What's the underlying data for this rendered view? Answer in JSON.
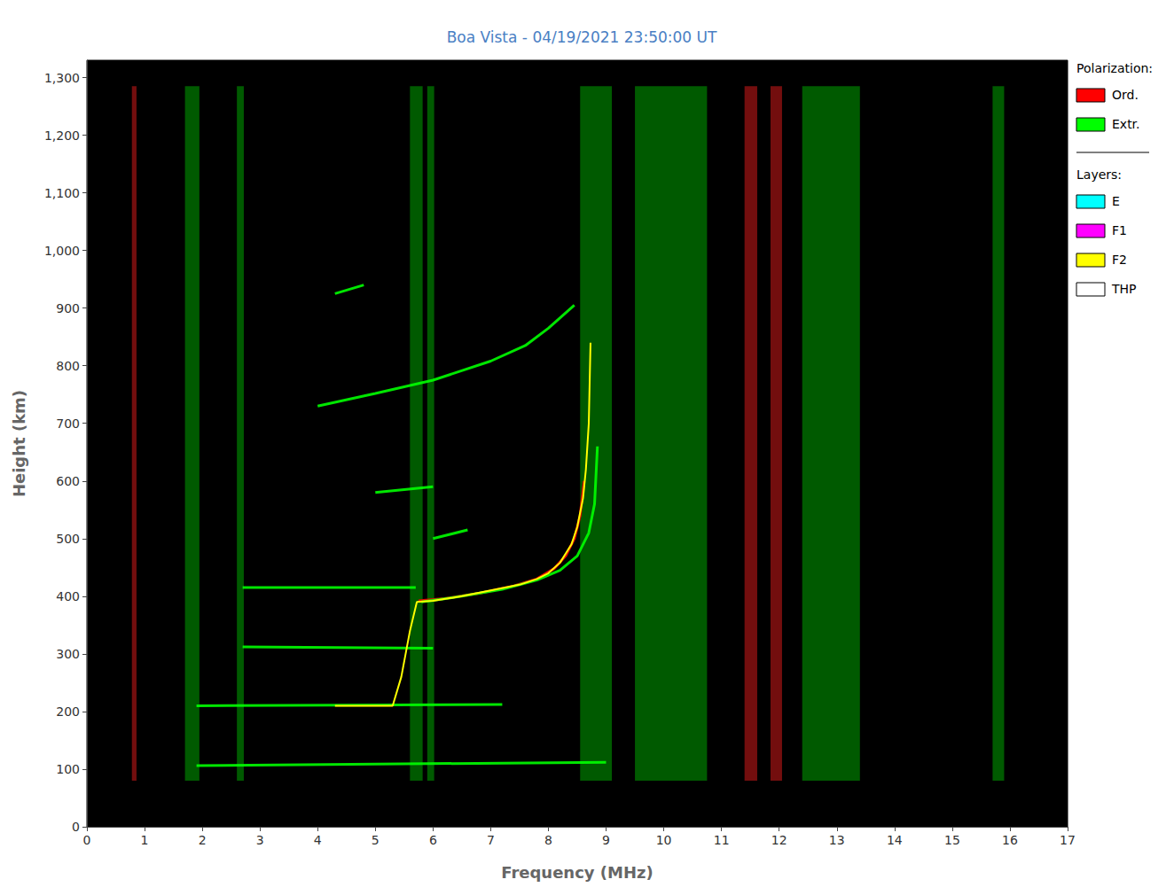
{
  "chart_data": {
    "type": "scatter",
    "title": "Boa Vista - 04/19/2021 23:50:00 UT",
    "x_label": "Frequency (MHz)",
    "y_label": "Height (km)",
    "xlim": [
      0,
      17
    ],
    "xticks": [
      0,
      1,
      2,
      3,
      4,
      5,
      6,
      7,
      8,
      9,
      10,
      11,
      12,
      13,
      14,
      15,
      16,
      17
    ],
    "ylim": [
      0,
      1330
    ],
    "yticks": [
      0,
      100,
      200,
      300,
      400,
      500,
      600,
      700,
      800,
      900,
      1000,
      1100,
      1200,
      1300
    ],
    "grid": false,
    "legend": "right",
    "interference": {
      "heights": [
        80,
        1285
      ],
      "bands": [
        {
          "from": 0.78,
          "to": 0.86,
          "color": "#ff2020"
        },
        {
          "from": 1.7,
          "to": 1.95,
          "color": "#00c800"
        },
        {
          "from": 2.6,
          "to": 2.72,
          "color": "#00c800"
        },
        {
          "from": 5.6,
          "to": 5.82,
          "color": "#00c800"
        },
        {
          "from": 5.9,
          "to": 6.02,
          "color": "#00c800"
        },
        {
          "from": 8.55,
          "to": 9.1,
          "color": "#00c800"
        },
        {
          "from": 9.5,
          "to": 10.75,
          "color": "#00c800"
        },
        {
          "from": 11.4,
          "to": 11.62,
          "color": "#ff2020"
        },
        {
          "from": 11.85,
          "to": 12.05,
          "color": "#ff2020"
        },
        {
          "from": 12.4,
          "to": 13.4,
          "color": "#00c800"
        },
        {
          "from": 15.7,
          "to": 15.9,
          "color": "#00c800"
        }
      ]
    },
    "legend_groups": [
      {
        "title": "Polarization:",
        "series": [
          {
            "name": "Ord.",
            "color": "#ff0000",
            "type": "line",
            "values": [
              [
                5.75,
                392
              ],
              [
                6.2,
                396
              ],
              [
                6.8,
                405
              ],
              [
                7.4,
                418
              ],
              [
                7.8,
                430
              ],
              [
                8.1,
                448
              ],
              [
                8.3,
                470
              ],
              [
                8.45,
                500
              ],
              [
                8.55,
                540
              ],
              [
                8.62,
                600
              ]
            ]
          },
          {
            "name": "Extr.",
            "color": "#00ff00",
            "type": "line",
            "values": [
              [
                5.8,
                390
              ],
              [
                6.5,
                400
              ],
              [
                7.2,
                412
              ],
              [
                7.8,
                428
              ],
              [
                8.2,
                445
              ],
              [
                8.5,
                470
              ],
              [
                8.7,
                510
              ],
              [
                8.8,
                560
              ],
              [
                8.82,
                600
              ],
              [
                8.85,
                660
              ],
              null,
              [
                1.9,
                106
              ],
              [
                9.0,
                112
              ],
              null,
              [
                1.9,
                210
              ],
              [
                7.2,
                212
              ],
              null,
              [
                2.7,
                312
              ],
              [
                6.0,
                310
              ],
              null,
              [
                2.7,
                415
              ],
              [
                5.7,
                415
              ],
              null,
              [
                6.0,
                500
              ],
              [
                6.6,
                515
              ],
              null,
              [
                5.0,
                580
              ],
              [
                6.0,
                590
              ],
              null,
              [
                4.0,
                730
              ],
              [
                5.0,
                752
              ],
              [
                6.0,
                775
              ],
              [
                7.0,
                808
              ],
              [
                7.6,
                835
              ],
              [
                8.0,
                865
              ],
              [
                8.45,
                905
              ],
              null,
              [
                4.3,
                925
              ],
              [
                4.8,
                940
              ]
            ]
          }
        ]
      },
      {
        "title": "Layers:",
        "series": [
          {
            "name": "E",
            "color": "#00ffff",
            "type": "line",
            "values": []
          },
          {
            "name": "F1",
            "color": "#ff00ff",
            "type": "line",
            "values": []
          },
          {
            "name": "F2",
            "color": "#ffff00",
            "type": "line",
            "values": [
              [
                4.3,
                210
              ],
              [
                5.3,
                210
              ],
              [
                5.45,
                260
              ],
              [
                5.6,
                340
              ],
              [
                5.72,
                390
              ],
              [
                6.0,
                392
              ],
              [
                6.5,
                400
              ],
              [
                7.0,
                410
              ],
              [
                7.5,
                420
              ],
              [
                7.8,
                430
              ],
              [
                8.0,
                440
              ],
              [
                8.2,
                458
              ],
              [
                8.4,
                490
              ],
              [
                8.5,
                520
              ],
              [
                8.6,
                570
              ],
              [
                8.65,
                620
              ],
              [
                8.7,
                700
              ],
              [
                8.73,
                840
              ]
            ]
          },
          {
            "name": "THP",
            "color": "#ffffff",
            "type": "line",
            "values": []
          }
        ]
      }
    ]
  }
}
